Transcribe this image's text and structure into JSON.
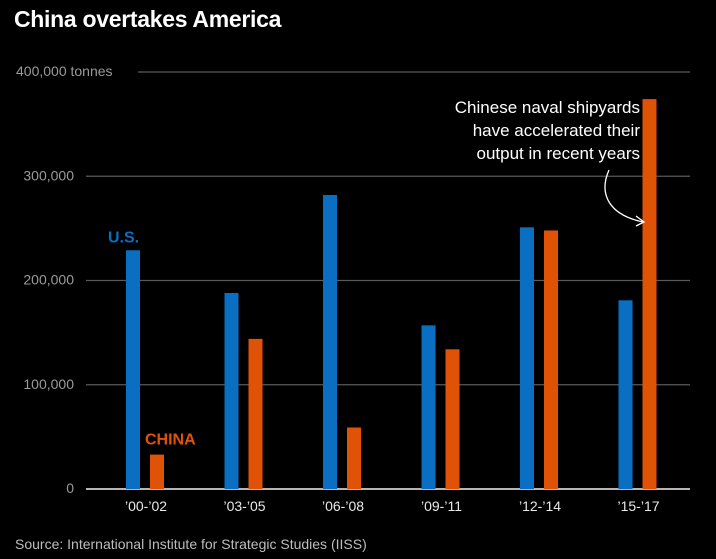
{
  "colors": {
    "us": "#0a6fc2",
    "china": "#e05206",
    "grid": "#5a5a5a",
    "baseline": "#b5b5b5"
  },
  "chart_data": {
    "type": "bar",
    "title": "China overtakes America",
    "xlabel": "",
    "ylabel": "tonnes",
    "ylim": [
      0,
      400000
    ],
    "yticks": [
      {
        "value": 0,
        "label": "0"
      },
      {
        "value": 100000,
        "label": "100,000"
      },
      {
        "value": 200000,
        "label": "200,000"
      },
      {
        "value": 300000,
        "label": "300,000"
      },
      {
        "value": 400000,
        "label": "400,000 tonnes"
      }
    ],
    "grid": true,
    "categories": [
      "’00-’02",
      "’03-’05",
      "’06-’08",
      "’09-’11",
      "’12-’14",
      "’15-’17"
    ],
    "series": [
      {
        "name": "U.S.",
        "values": [
          229000,
          188000,
          282000,
          157000,
          251000,
          181000
        ]
      },
      {
        "name": "CHINA",
        "values": [
          33000,
          144000,
          59000,
          134000,
          248000,
          374000
        ]
      }
    ],
    "legend": "inline labels above first bars",
    "annotation": {
      "lines": [
        "Chinese naval shipyards",
        "have accelerated their",
        "output in recent years"
      ],
      "target": "CHINA ’15-’17"
    },
    "source": "Source: International Institute for Strategic Studies (IISS)"
  }
}
